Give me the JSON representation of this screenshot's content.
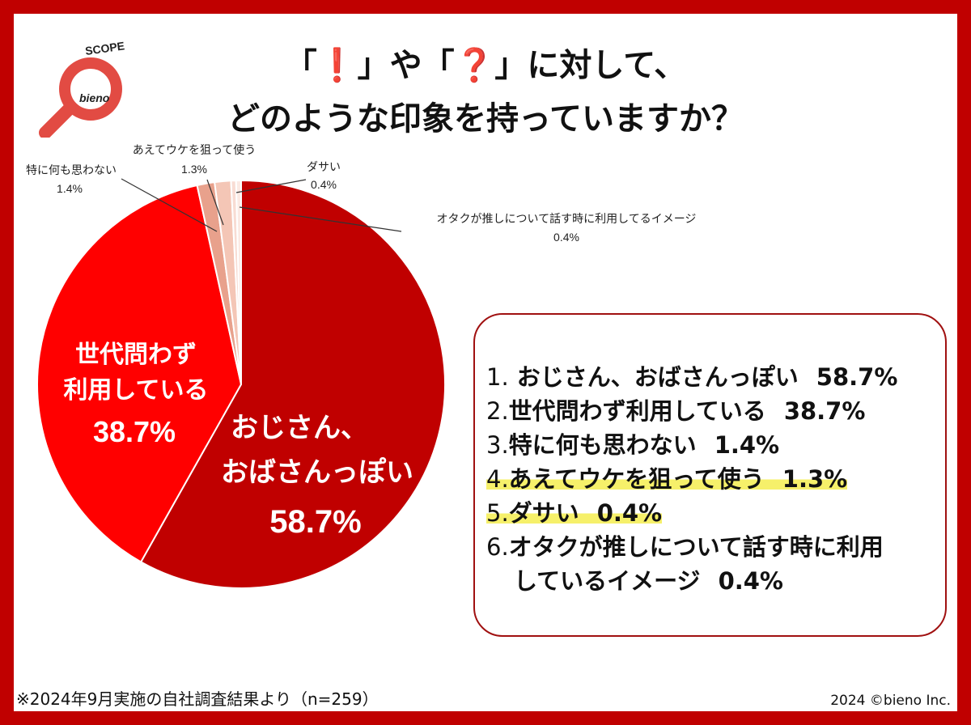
{
  "title": {
    "line1_pre": "「",
    "line1_mark1": "❗",
    "line1_mid": "」や「",
    "line1_mark2": "❓",
    "line1_post": "」に対して、",
    "line2": "どのような印象を持っていますか？"
  },
  "logo": {
    "top_text": "SCOPE",
    "brand": "bieno"
  },
  "colors": {
    "frame": "#c00000",
    "slice_1": "#c00000",
    "slice_2": "#ff0000",
    "slice_3": "#e8a18c",
    "slice_4": "#f4c6b6",
    "slice_5": "#f8dcd3",
    "slice_6": "#fbeae4",
    "highlight": "#f6f06a"
  },
  "chart_data": {
    "type": "pie",
    "title": "「❗」や「❓」に対して、どのような印象を持っていますか？",
    "slices": [
      {
        "label": "おじさん、おばさんっぽい",
        "value": 58.7,
        "label_text": "58.7%"
      },
      {
        "label": "世代問わず利用している",
        "value": 38.7,
        "label_text": "38.7%"
      },
      {
        "label": "特に何も思わない",
        "value": 1.4,
        "label_text": "1.4%"
      },
      {
        "label": "あえてウケを狙って使う",
        "value": 1.3,
        "label_text": "1.3%"
      },
      {
        "label": "ダサい",
        "value": 0.4,
        "label_text": "0.4%"
      },
      {
        "label": "オタクが推しについて話す時に利用してるイメージ",
        "value": 0.4,
        "label_text": "0.4%"
      }
    ]
  },
  "pie_labels": {
    "big1_line1": "おじさん、",
    "big1_line2": "おばさんっぽい",
    "big1_pct": "58.7%",
    "big2_line1": "世代問わず",
    "big2_line2": "利用している",
    "big2_pct": "38.7%",
    "s3_name": "特に何も思わない",
    "s3_pct": "1.4%",
    "s4_name": "あえてウケを狙って使う",
    "s4_pct": "1.3%",
    "s5_name": "ダサい",
    "s5_pct": "0.4%",
    "s6_name": "オタクが推しについて話す時に利用してるイメージ",
    "s6_pct": "0.4%"
  },
  "legend": [
    {
      "num": "1.",
      "text": "おじさん、おばさんっぽい",
      "pct": "58.7%",
      "highlight": false
    },
    {
      "num": "2.",
      "text": "世代問わず利用している",
      "pct": "38.7%",
      "highlight": false
    },
    {
      "num": "3.",
      "text": "特に何も思わない",
      "pct": "1.4%",
      "highlight": false
    },
    {
      "num": "4.",
      "text": "あえてウケを狙って使う",
      "pct": "1.3%",
      "highlight": true
    },
    {
      "num": "5.",
      "text": "ダサい",
      "pct": "0.4%",
      "highlight": true
    },
    {
      "num": "6.",
      "text": "オタクが推しについて話す時に利用",
      "text2": "しているイメージ",
      "pct": "0.4%",
      "highlight": false
    }
  ],
  "footnote": "※2024年9月実施の自社調査結果より（n=259）",
  "copyright": "2024 ©bieno Inc."
}
